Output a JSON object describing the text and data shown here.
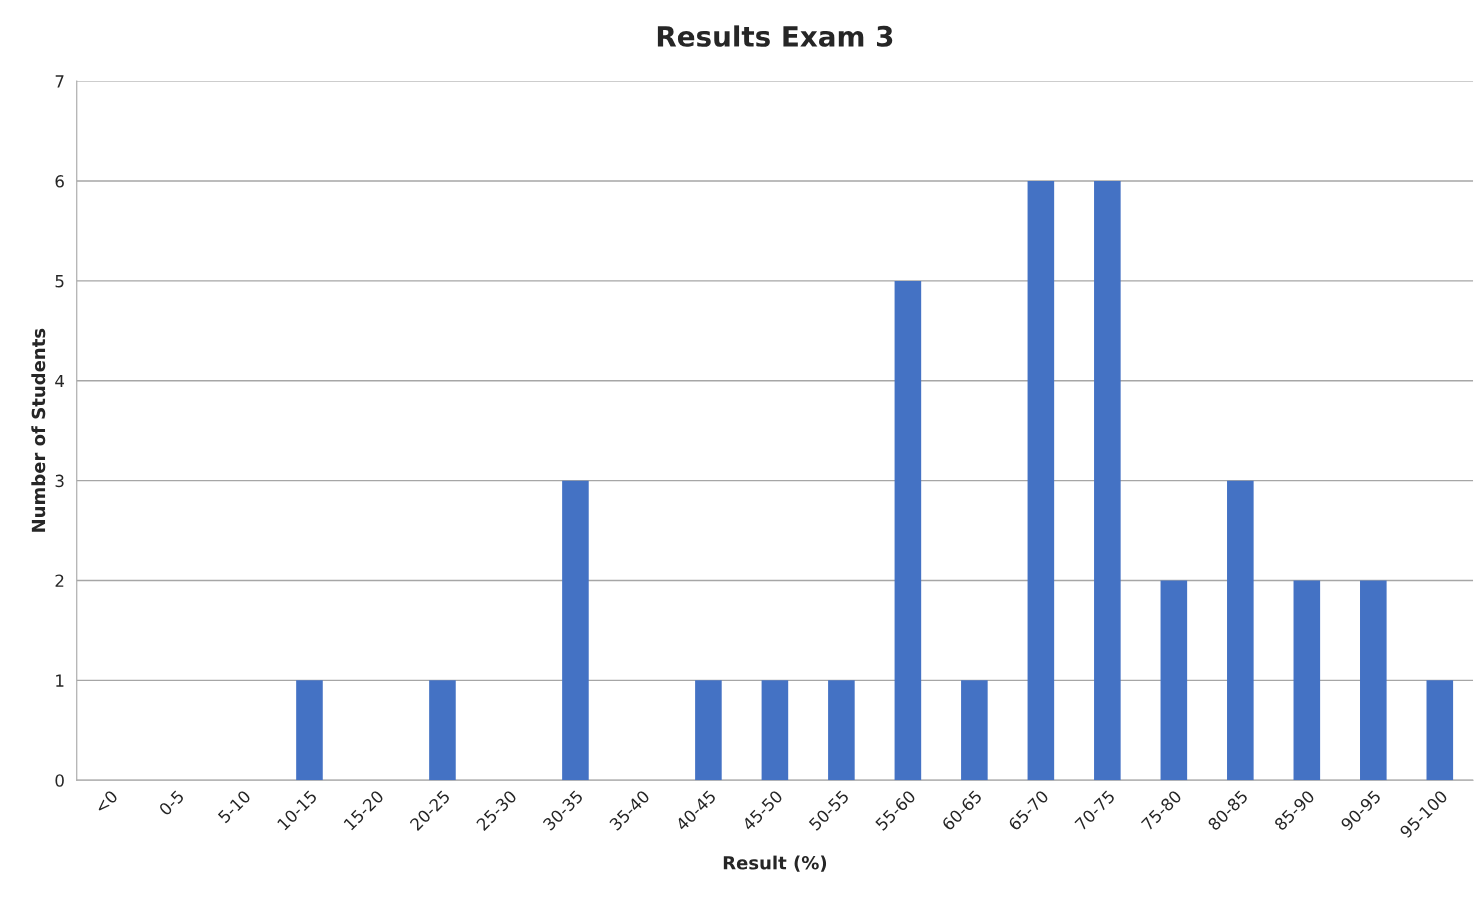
{
  "chart_data": {
    "type": "bar",
    "title": "Results Exam 3",
    "xlabel": "Result (%)",
    "ylabel": "Number of Students",
    "categories": [
      "<0",
      "0-5",
      "5-10",
      "10-15",
      "15-20",
      "20-25",
      "25-30",
      "30-35",
      "35-40",
      "40-45",
      "45-50",
      "50-55",
      "55-60",
      "60-65",
      "65-70",
      "70-75",
      "75-80",
      "80-85",
      "85-90",
      "90-95",
      "95-100"
    ],
    "values": [
      0,
      0,
      0,
      1,
      0,
      1,
      0,
      3,
      0,
      1,
      1,
      1,
      5,
      1,
      6,
      6,
      2,
      3,
      2,
      2,
      1
    ],
    "color": "#4472c4",
    "ylim": [
      0,
      7
    ],
    "yticks": [
      0,
      1,
      2,
      3,
      4,
      5,
      6,
      7
    ],
    "grid": "y"
  }
}
